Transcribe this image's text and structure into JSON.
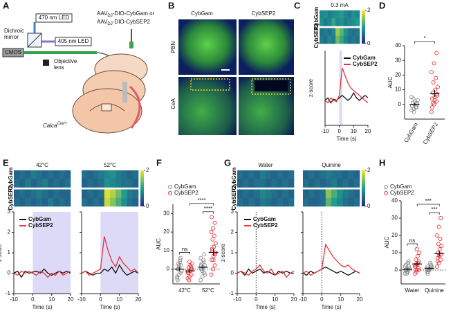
{
  "panel_labels": [
    "A",
    "B",
    "C",
    "D",
    "E",
    "F",
    "G",
    "H"
  ],
  "schematic": {
    "led_470": "470 nm LED",
    "led_405": "405 nm LED",
    "dichroic": [
      "Dichroic",
      "mirror"
    ],
    "camera": "CMOS",
    "objective": [
      "Objective",
      "lens"
    ],
    "virus": [
      [
        "AAV",
        "DJ",
        "-DIO-CybGam or"
      ],
      [
        "AAV",
        "DJ",
        "-DIO-CybSEP2"
      ]
    ],
    "mouse_line": [
      "Calca",
      "Cre/+"
    ]
  },
  "histology": {
    "columns": [
      "CybGam",
      "CybSEP2"
    ],
    "rows": [
      "PBN",
      "CeA"
    ]
  },
  "chart_data": [
    {
      "type": "heatmap",
      "titles": [
        "0.3 mA"
      ],
      "row_labels": [
        "CybGam",
        "CybSEP2"
      ],
      "zlim": [
        0,
        2
      ],
      "zticks": [
        0,
        2
      ],
      "colors": [
        "#262a86",
        "#1f9e8e",
        "#f3e529"
      ],
      "values": [
        [
          [
            [
              0.8,
              0.9,
              0.7,
              0.8,
              0.9,
              1.0,
              0.8,
              0.7,
              0.9,
              0.8
            ],
            [
              0.9,
              0.7,
              0.8,
              1.1,
              0.8,
              0.9,
              0.7,
              0.8,
              0.9,
              1.0
            ]
          ],
          [
            [
              0.6,
              0.7,
              0.6,
              0.8,
              1.6,
              1.3,
              0.9,
              0.7,
              0.6,
              0.7
            ],
            [
              0.7,
              0.6,
              0.8,
              0.7,
              1.4,
              1.1,
              0.8,
              0.6,
              0.7,
              0.6
            ]
          ]
        ]
      ]
    },
    {
      "type": "line",
      "x": [
        -10,
        -8,
        -6,
        -4,
        -2,
        0,
        2,
        4,
        6,
        8,
        10,
        12,
        14,
        16,
        18,
        20
      ],
      "xlim": [
        -10,
        20
      ],
      "xticks": [
        -10,
        0,
        10,
        20
      ],
      "ylim": [
        -1,
        2
      ],
      "xlabel": "Time (s)",
      "ylabel": "z-score",
      "shade": [
        0,
        2
      ],
      "series": [
        {
          "name": "CybGam",
          "color": "#111111",
          "values": [
            [
              0,
              0.1,
              -0.1,
              0.05,
              0,
              0.1,
              0.2,
              0.1,
              0,
              0.1,
              0.3,
              0.1,
              0,
              0.1,
              0.2,
              0.1
            ]
          ]
        },
        {
          "name": "CybSEP2",
          "color": "#e8343a",
          "values": [
            [
              0,
              -0.1,
              0.1,
              0,
              -0.05,
              0.2,
              1.3,
              1.0,
              0.7,
              0.5,
              0.4,
              0.3,
              0.2,
              0.1,
              0,
              -0.1
            ]
          ]
        }
      ]
    },
    {
      "type": "dot",
      "categories": [
        "CybGam",
        "CybSEP2"
      ],
      "colors": [
        "#8a8a8a",
        "#e8343a"
      ],
      "ylabel": "AUC",
      "ylim": [
        -10,
        40
      ],
      "yticks": [
        0,
        10,
        20,
        30,
        40
      ],
      "values": [
        [
          -4,
          -3,
          -2,
          -1,
          0,
          0,
          1,
          2,
          3,
          4,
          -2,
          5,
          -5,
          1,
          -1
        ],
        [
          -5,
          0,
          2,
          4,
          5,
          7,
          8,
          10,
          12,
          15,
          18,
          22,
          28,
          35,
          -2,
          3,
          6,
          1
        ]
      ],
      "mean": [
        0,
        7.5
      ],
      "sem": [
        0.8,
        2.4
      ],
      "annotations": [
        "*"
      ]
    },
    {
      "type": "heatmap",
      "titles": [
        "42°C",
        "52°C"
      ],
      "row_labels": [
        "CybGam",
        "CybSEP2"
      ],
      "zlim": [
        0,
        2
      ],
      "zticks": [
        0,
        2
      ],
      "colors": [
        "#262a86",
        "#1f9e8e",
        "#f3e529"
      ],
      "values": [
        [
          [
            [
              0.5,
              0.6,
              0.5,
              0.7,
              0.6,
              0.5,
              0.6,
              0.5,
              0.6,
              0.5
            ],
            [
              0.6,
              0.5,
              0.7,
              0.5,
              0.6,
              0.7,
              0.5,
              0.6,
              0.5,
              0.6
            ]
          ],
          [
            [
              0.5,
              0.6,
              0.5,
              0.6,
              0.7,
              0.6,
              0.5,
              0.6,
              0.5,
              0.5
            ],
            [
              0.6,
              0.5,
              0.6,
              0.5,
              0.6,
              0.5,
              0.7,
              0.5,
              0.6,
              0.5
            ]
          ]
        ],
        [
          [
            [
              0.6,
              0.5,
              0.6,
              0.7,
              0.8,
              0.9,
              0.7,
              0.6,
              0.5,
              0.6
            ],
            [
              0.5,
              0.6,
              0.5,
              0.6,
              0.9,
              0.8,
              0.7,
              0.6,
              0.6,
              0.5
            ]
          ],
          [
            [
              0.5,
              0.6,
              0.5,
              0.6,
              1.9,
              1.7,
              1.4,
              1.0,
              0.7,
              0.6
            ],
            [
              0.6,
              0.5,
              0.6,
              0.5,
              1.8,
              1.5,
              1.2,
              0.9,
              0.6,
              0.5
            ]
          ]
        ]
      ]
    },
    {
      "type": "line",
      "x": [
        -10,
        -8,
        -6,
        -4,
        -2,
        0,
        2,
        4,
        6,
        8,
        10,
        12,
        14,
        16,
        18,
        20
      ],
      "xlim": [
        -10,
        20
      ],
      "xticks": [
        -10,
        0,
        10,
        20
      ],
      "ylim": [
        -1,
        3
      ],
      "yticks": [
        -1,
        0,
        1,
        2,
        3
      ],
      "xlabel": "Time (s)",
      "ylabel": "z-score",
      "shade": [
        0,
        20
      ],
      "series": [
        {
          "name": "CybGam",
          "color": "#111111",
          "values": [
            [
              0,
              0.1,
              -0.2,
              0.1,
              0,
              0.05,
              0.1,
              0,
              0.2,
              0,
              -0.1,
              0,
              0.1,
              0,
              0.1,
              0
            ],
            [
              0,
              0.1,
              0,
              -0.1,
              0,
              0,
              0.2,
              0.1,
              0.3,
              0,
              0.4,
              0.1,
              -0.1,
              0,
              0.1,
              0
            ]
          ]
        },
        {
          "name": "CybSEP2",
          "color": "#e8343a",
          "values": [
            [
              0,
              -0.1,
              0.1,
              0,
              0.1,
              0,
              -0.1,
              0.1,
              0,
              -0.2,
              0,
              -0.1,
              0.1,
              -0.1,
              0,
              0.1
            ],
            [
              0,
              0.1,
              -0.1,
              0,
              0.1,
              0.2,
              1.8,
              1.1,
              0.6,
              0.3,
              0.8,
              0.5,
              0.3,
              0.1,
              0.2,
              0
            ]
          ]
        }
      ]
    },
    {
      "type": "grouped_dot",
      "categories": [
        "42°C",
        "52°C"
      ],
      "ylabel": "AUC",
      "ylim": [
        -8,
        35
      ],
      "yticks": [
        0,
        10,
        20,
        30
      ],
      "zero_line": true,
      "series": [
        {
          "name": "CybGam",
          "color": "#8a8a8a",
          "values": [
            [
              -5,
              -3,
              -2,
              0,
              1,
              2,
              3,
              4,
              -1,
              0,
              5,
              -4,
              2,
              6,
              -6
            ],
            [
              -6,
              -4,
              -2,
              0,
              1,
              2,
              3,
              5,
              -3,
              0,
              4,
              6,
              -1,
              8,
              2
            ]
          ],
          "mean": [
            0,
            1
          ],
          "sem": [
            1.2,
            1.1
          ]
        },
        {
          "name": "CybSEP2",
          "color": "#e8343a",
          "values": [
            [
              -5,
              -4,
              -3,
              -2,
              -1,
              0,
              1,
              2,
              3,
              -6,
              0,
              -2,
              4,
              1,
              -1
            ],
            [
              -3,
              0,
              2,
              5,
              7,
              8,
              10,
              12,
              14,
              16,
              18,
              20,
              22,
              25,
              28,
              5,
              9,
              11
            ]
          ],
          "mean": [
            -1,
            9
          ],
          "sem": [
            0.8,
            2.0
          ]
        }
      ],
      "annotations": [
        "ns",
        "****",
        "****"
      ]
    },
    {
      "type": "heatmap",
      "titles": [
        "Water",
        "Quinine"
      ],
      "row_labels": [
        "CybGam",
        "CybSEP2"
      ],
      "zlim": [
        0,
        2
      ],
      "zticks": [
        0,
        2
      ],
      "colors": [
        "#262a86",
        "#1f9e8e",
        "#f3e529"
      ],
      "values": [
        [
          [
            [
              0.6,
              0.5,
              0.6,
              0.5,
              0.7,
              0.6,
              0.5,
              0.6,
              0.5,
              0.6
            ],
            [
              0.5,
              0.6,
              0.5,
              0.6,
              0.6,
              0.5,
              0.6,
              0.5,
              0.6,
              0.5
            ]
          ],
          [
            [
              0.5,
              0.6,
              0.5,
              0.6,
              0.8,
              0.7,
              0.6,
              0.5,
              0.6,
              0.5
            ],
            [
              0.6,
              0.5,
              0.6,
              0.5,
              0.7,
              0.6,
              0.5,
              0.6,
              0.5,
              0.6
            ]
          ]
        ],
        [
          [
            [
              0.5,
              0.6,
              0.5,
              0.6,
              0.7,
              0.6,
              0.6,
              0.5,
              0.6,
              0.5
            ],
            [
              0.6,
              0.5,
              0.6,
              0.5,
              0.6,
              0.7,
              0.5,
              0.6,
              0.5,
              0.6
            ]
          ],
          [
            [
              0.5,
              0.6,
              0.5,
              0.6,
              1.5,
              1.2,
              0.9,
              0.7,
              0.6,
              0.5
            ],
            [
              0.6,
              0.5,
              0.5,
              0.6,
              1.3,
              1.0,
              0.8,
              0.6,
              0.5,
              0.6
            ]
          ]
        ]
      ]
    },
    {
      "type": "line",
      "x": [
        -10,
        -8,
        -6,
        -4,
        -2,
        0,
        2,
        4,
        6,
        8,
        10,
        12,
        14,
        16,
        18,
        20
      ],
      "xlim": [
        -10,
        20
      ],
      "xticks": [
        -10,
        0,
        10,
        20
      ],
      "ylim": [
        -1,
        3
      ],
      "yticks": [
        -1,
        0,
        1,
        2,
        3
      ],
      "xlabel": "Time (s)",
      "ylabel": "z-score",
      "vline": 0,
      "series": [
        {
          "name": "CybGam",
          "color": "#111111",
          "values": [
            [
              0,
              0.1,
              -0.1,
              0.2,
              0,
              0.1,
              0.2,
              0,
              0.1,
              0,
              -0.1,
              0.1,
              0,
              0.1,
              0,
              0
            ],
            [
              0,
              -0.1,
              0.1,
              0,
              0.1,
              0.2,
              0.3,
              0.2,
              0.1,
              0,
              0.1,
              0,
              -0.1,
              0,
              0.1,
              0
            ]
          ]
        },
        {
          "name": "CybSEP2",
          "color": "#e8343a",
          "values": [
            [
              0,
              0.1,
              0,
              -0.1,
              0.1,
              0.2,
              0.4,
              0.1,
              0,
              0.2,
              -0.1,
              0,
              0.1,
              -0.2,
              0,
              0.1
            ],
            [
              0,
              0.1,
              -0.1,
              0,
              0.1,
              0.2,
              1.4,
              1.1,
              0.8,
              0.6,
              0.4,
              0.3,
              0.4,
              0.2,
              0.1,
              0
            ]
          ]
        }
      ]
    },
    {
      "type": "grouped_dot",
      "categories": [
        "Water",
        "Quinine"
      ],
      "ylabel": "AUC",
      "ylim": [
        -8,
        40
      ],
      "yticks": [
        0,
        10,
        20,
        30,
        40
      ],
      "zero_line": true,
      "series": [
        {
          "name": "CybGam",
          "color": "#8a8a8a",
          "values": [
            [
              -2,
              -1,
              0,
              0,
              1,
              2,
              3,
              -1,
              1,
              0,
              4,
              2,
              -2,
              5,
              0
            ],
            [
              -1,
              0,
              1,
              2,
              0,
              3,
              -1,
              1,
              2,
              0,
              4,
              1,
              0,
              2,
              -2
            ]
          ],
          "mean": [
            0.5,
            1
          ],
          "sem": [
            0.6,
            0.5
          ]
        },
        {
          "name": "CybSEP2",
          "color": "#e8343a",
          "values": [
            [
              -2,
              0,
              1,
              2,
              3,
              5,
              6,
              8,
              10,
              -1,
              4,
              2,
              12,
              0,
              3
            ],
            [
              2,
              4,
              6,
              7,
              8,
              9,
              10,
              12,
              14,
              15,
              18,
              20,
              25,
              30,
              5,
              8
            ]
          ],
          "mean": [
            3.5,
            9.5
          ],
          "sem": [
            1.1,
            1.8
          ]
        }
      ],
      "annotations": [
        "ns",
        "***",
        "***"
      ]
    }
  ]
}
